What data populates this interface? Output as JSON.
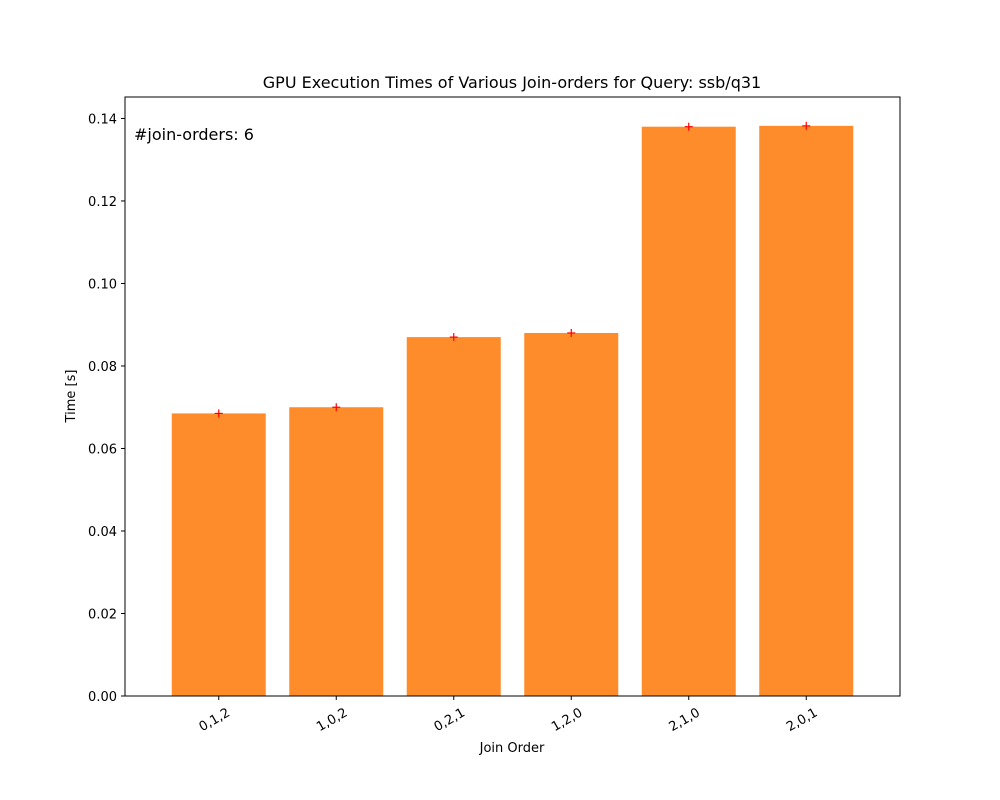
{
  "chart_data": {
    "type": "bar",
    "title": "GPU Execution Times of Various Join-orders for Query: ssb/q31",
    "xlabel": "Join Order",
    "ylabel": "Time [s]",
    "annotation": "#join-orders: 6",
    "categories": [
      "0,1,2",
      "1,0,2",
      "0,2,1",
      "1,2,0",
      "2,1,0",
      "2,0,1"
    ],
    "values": [
      0.0685,
      0.07,
      0.087,
      0.088,
      0.138,
      0.1382
    ],
    "markers": [
      0.0685,
      0.07,
      0.087,
      0.088,
      0.138,
      0.1382
    ],
    "ylim": [
      0,
      0.1452
    ],
    "yticks": [
      "0.00",
      "0.02",
      "0.04",
      "0.06",
      "0.08",
      "0.10",
      "0.12",
      "0.14"
    ],
    "ytick_values": [
      0,
      0.02,
      0.04,
      0.06,
      0.08,
      0.1,
      0.12,
      0.14
    ],
    "grid": false,
    "bar_color": "#ff8c2a",
    "marker_color": "#ff0000",
    "x_tick_rotation_deg": 30
  }
}
